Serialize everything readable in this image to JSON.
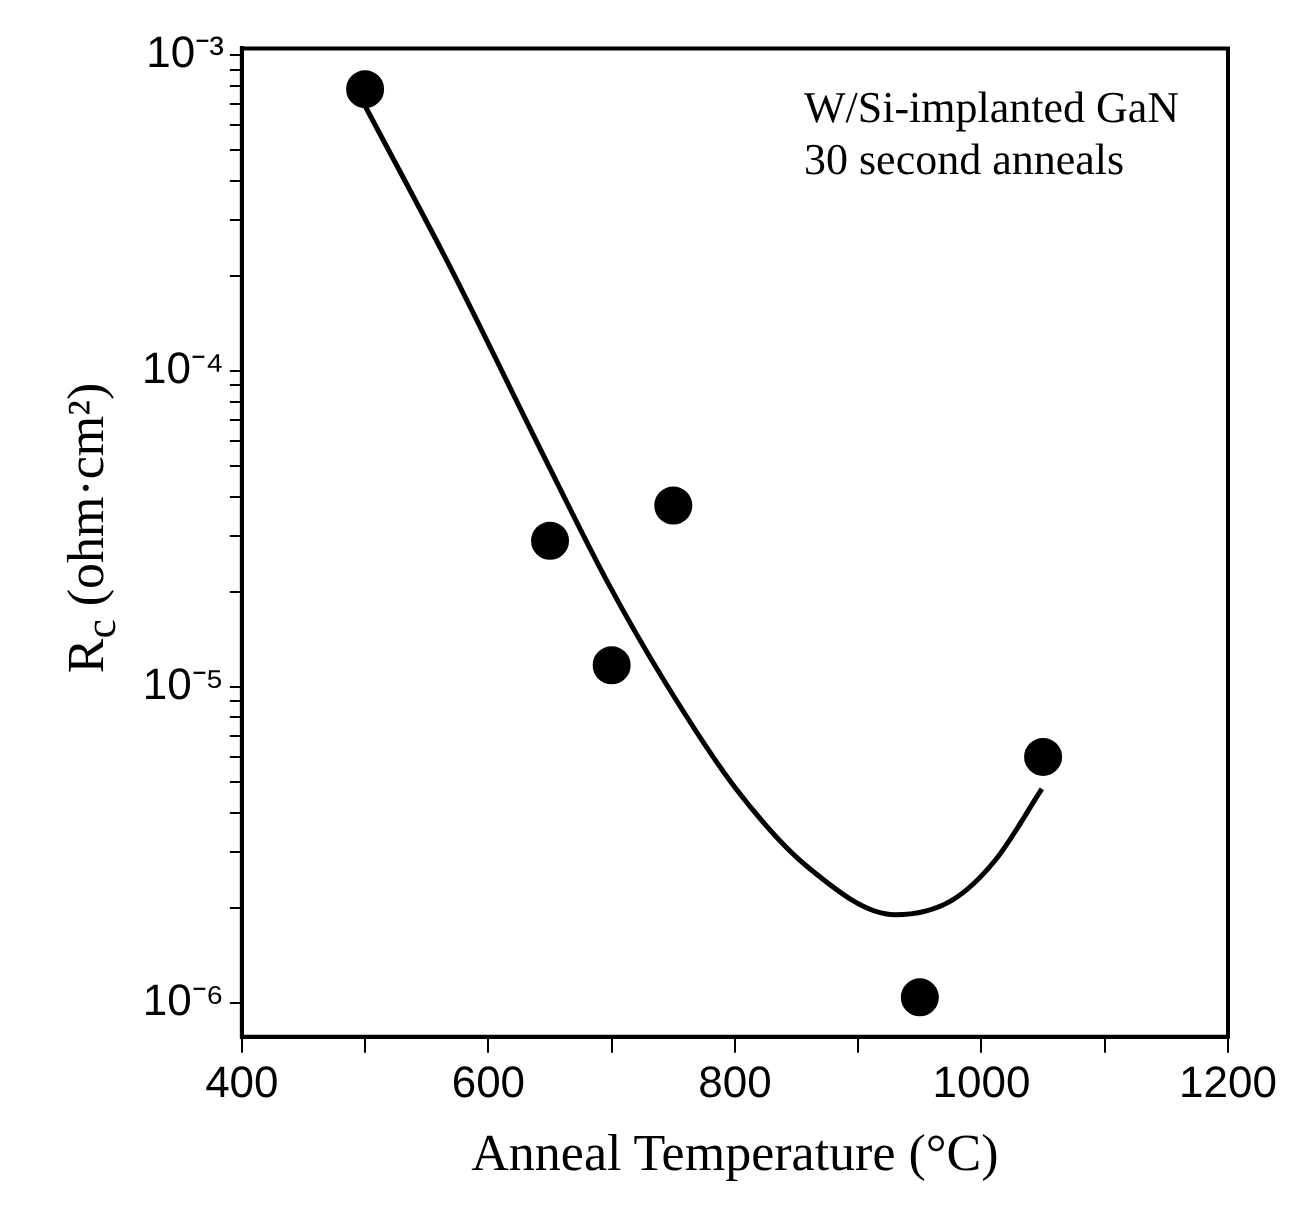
{
  "chart_data": {
    "type": "scatter",
    "xlabel": "Anneal Temperature (°C)",
    "ylabel": "R$_{c}$ (ohm·cm²)",
    "log": "y",
    "grid": false,
    "legend": false,
    "annotations": [
      "W/Si-implanted GaN",
      "30 second anneals"
    ],
    "xlim": [
      400,
      1200
    ],
    "xticks": [
      400,
      {
        "value": 500,
        "label": null
      },
      600,
      {
        "value": 700,
        "label": null
      },
      800,
      {
        "value": 900,
        "label": null
      },
      1000,
      {
        "value": 1100,
        "label": null
      },
      1200
    ],
    "ylim": [
      7.8e-07,
      0.00105
    ],
    "yticks": [
      {
        "value": 1e-06,
        "label": "10⁻⁶"
      },
      {
        "value": 2e-06,
        "label": null
      },
      {
        "value": 3e-06,
        "label": null
      },
      {
        "value": 4e-06,
        "label": null
      },
      {
        "value": 5e-06,
        "label": null
      },
      {
        "value": 6e-06,
        "label": null
      },
      {
        "value": 7e-06,
        "label": null
      },
      {
        "value": 8e-06,
        "label": null
      },
      {
        "value": 9e-06,
        "label": null
      },
      {
        "value": 1e-05,
        "label": "10⁻⁵"
      },
      {
        "value": 2e-05,
        "label": null
      },
      {
        "value": 3e-05,
        "label": null
      },
      {
        "value": 4e-05,
        "label": null
      },
      {
        "value": 5e-05,
        "label": null
      },
      {
        "value": 6e-05,
        "label": null
      },
      {
        "value": 7e-05,
        "label": null
      },
      {
        "value": 8e-05,
        "label": null
      },
      {
        "value": 9e-05,
        "label": null
      },
      {
        "value": 0.0001,
        "label": "10⁻⁴"
      },
      {
        "value": 0.0002,
        "label": null
      },
      {
        "value": 0.0003,
        "label": null
      },
      {
        "value": 0.0004,
        "label": null
      },
      {
        "value": 0.0005,
        "label": null
      },
      {
        "value": 0.0006,
        "label": null
      },
      {
        "value": 0.0007,
        "label": null
      },
      {
        "value": 0.0008,
        "label": null
      },
      {
        "value": 0.0009,
        "label": null
      },
      {
        "value": 0.001,
        "label": "10⁻³"
      }
    ],
    "series": [
      {
        "type": "scatter",
        "color": "#000000",
        "marker": "circle",
        "x": [
          500,
          650,
          700,
          750,
          950,
          1050
        ],
        "values": [
          0.00078,
          2.9e-05,
          1.17e-05,
          3.75e-05,
          1.04e-06,
          6e-06
        ]
      },
      {
        "type": "line",
        "color": "#000000",
        "marker": "none",
        "line_style": "solid",
        "x": [
          500,
          568,
          649,
          696,
          743,
          801,
          860,
          930,
          976,
          1011,
          1049
        ],
        "values": [
          0.00069,
          0.000217,
          5e-05,
          2.17e-05,
          1.04e-05,
          4.75e-06,
          2.67e-06,
          1.9e-06,
          2.11e-06,
          2.82e-06,
          4.75e-06
        ]
      }
    ]
  }
}
